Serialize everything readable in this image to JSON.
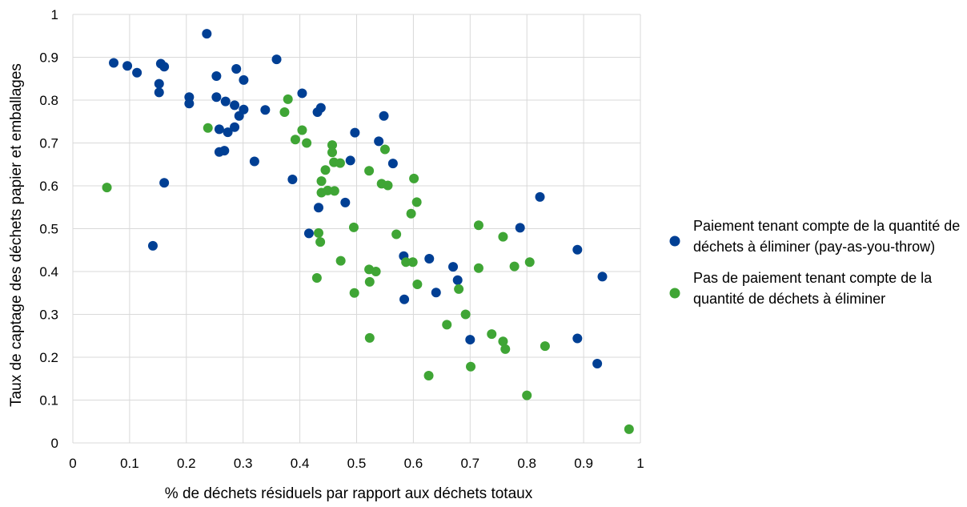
{
  "chart_data": {
    "type": "scatter",
    "title": "",
    "xlabel": "% de déchets résiduels par rapport aux déchets totaux",
    "ylabel": "Taux de captage des déchets papier et emballages",
    "xlim": [
      0,
      1
    ],
    "ylim": [
      0,
      1
    ],
    "x_ticks": [
      "0",
      "0.1",
      "0.2",
      "0.3",
      "0.4",
      "0.5",
      "0.6",
      "0.7",
      "0.8",
      "0.9",
      "1"
    ],
    "y_ticks": [
      "0",
      "0.1",
      "0.2",
      "0.3",
      "0.4",
      "0.5",
      "0.6",
      "0.7",
      "0.8",
      "0.9",
      "1"
    ],
    "grid": true,
    "legend_position": "right",
    "series": [
      {
        "name": "Paiement tenant compte de la quantité de déchets à éliminer (pay-as-you-throw)",
        "legend_lines": [
          "Paiement tenant compte de la quantité de",
          "déchets à éliminer (pay-as-you-throw)"
        ],
        "color": "#003f94",
        "points": [
          [
            0.072,
            0.887
          ],
          [
            0.096,
            0.88
          ],
          [
            0.113,
            0.864
          ],
          [
            0.155,
            0.885
          ],
          [
            0.161,
            0.878
          ],
          [
            0.152,
            0.838
          ],
          [
            0.152,
            0.818
          ],
          [
            0.161,
            0.607
          ],
          [
            0.141,
            0.46
          ],
          [
            0.205,
            0.807
          ],
          [
            0.205,
            0.792
          ],
          [
            0.236,
            0.955
          ],
          [
            0.253,
            0.856
          ],
          [
            0.253,
            0.807
          ],
          [
            0.258,
            0.732
          ],
          [
            0.269,
            0.797
          ],
          [
            0.273,
            0.725
          ],
          [
            0.285,
            0.788
          ],
          [
            0.285,
            0.737
          ],
          [
            0.288,
            0.873
          ],
          [
            0.293,
            0.763
          ],
          [
            0.301,
            0.847
          ],
          [
            0.301,
            0.778
          ],
          [
            0.258,
            0.679
          ],
          [
            0.267,
            0.682
          ],
          [
            0.32,
            0.657
          ],
          [
            0.339,
            0.777
          ],
          [
            0.359,
            0.895
          ],
          [
            0.387,
            0.615
          ],
          [
            0.404,
            0.816
          ],
          [
            0.416,
            0.489
          ],
          [
            0.431,
            0.772
          ],
          [
            0.437,
            0.782
          ],
          [
            0.433,
            0.549
          ],
          [
            0.48,
            0.561
          ],
          [
            0.489,
            0.659
          ],
          [
            0.497,
            0.724
          ],
          [
            0.539,
            0.704
          ],
          [
            0.548,
            0.763
          ],
          [
            0.564,
            0.652
          ],
          [
            0.583,
            0.436
          ],
          [
            0.584,
            0.335
          ],
          [
            0.628,
            0.43
          ],
          [
            0.64,
            0.351
          ],
          [
            0.67,
            0.411
          ],
          [
            0.678,
            0.38
          ],
          [
            0.7,
            0.241
          ],
          [
            0.788,
            0.502
          ],
          [
            0.823,
            0.574
          ],
          [
            0.889,
            0.451
          ],
          [
            0.889,
            0.244
          ],
          [
            0.924,
            0.185
          ],
          [
            0.933,
            0.388
          ]
        ]
      },
      {
        "name": "Pas de paiement tenant compte de la quantité de déchets à éliminer",
        "legend_lines": [
          "Pas de paiement tenant compte de la",
          "quantité de déchets à éliminer"
        ],
        "color": "#3fa535",
        "points": [
          [
            0.06,
            0.596
          ],
          [
            0.238,
            0.735
          ],
          [
            0.373,
            0.772
          ],
          [
            0.379,
            0.802
          ],
          [
            0.392,
            0.708
          ],
          [
            0.404,
            0.73
          ],
          [
            0.412,
            0.7
          ],
          [
            0.43,
            0.385
          ],
          [
            0.433,
            0.49
          ],
          [
            0.436,
            0.469
          ],
          [
            0.438,
            0.611
          ],
          [
            0.438,
            0.584
          ],
          [
            0.445,
            0.637
          ],
          [
            0.449,
            0.589
          ],
          [
            0.457,
            0.695
          ],
          [
            0.457,
            0.678
          ],
          [
            0.46,
            0.655
          ],
          [
            0.461,
            0.588
          ],
          [
            0.471,
            0.653
          ],
          [
            0.472,
            0.425
          ],
          [
            0.495,
            0.503
          ],
          [
            0.496,
            0.35
          ],
          [
            0.522,
            0.635
          ],
          [
            0.522,
            0.405
          ],
          [
            0.523,
            0.376
          ],
          [
            0.523,
            0.245
          ],
          [
            0.534,
            0.4
          ],
          [
            0.544,
            0.605
          ],
          [
            0.55,
            0.685
          ],
          [
            0.555,
            0.601
          ],
          [
            0.57,
            0.487
          ],
          [
            0.587,
            0.422
          ],
          [
            0.596,
            0.535
          ],
          [
            0.599,
            0.422
          ],
          [
            0.601,
            0.617
          ],
          [
            0.606,
            0.562
          ],
          [
            0.607,
            0.37
          ],
          [
            0.627,
            0.157
          ],
          [
            0.659,
            0.276
          ],
          [
            0.68,
            0.359
          ],
          [
            0.692,
            0.3
          ],
          [
            0.701,
            0.178
          ],
          [
            0.715,
            0.508
          ],
          [
            0.715,
            0.408
          ],
          [
            0.738,
            0.254
          ],
          [
            0.758,
            0.481
          ],
          [
            0.758,
            0.237
          ],
          [
            0.762,
            0.219
          ],
          [
            0.778,
            0.412
          ],
          [
            0.8,
            0.111
          ],
          [
            0.805,
            0.422
          ],
          [
            0.832,
            0.226
          ],
          [
            0.98,
            0.032
          ]
        ]
      }
    ]
  }
}
